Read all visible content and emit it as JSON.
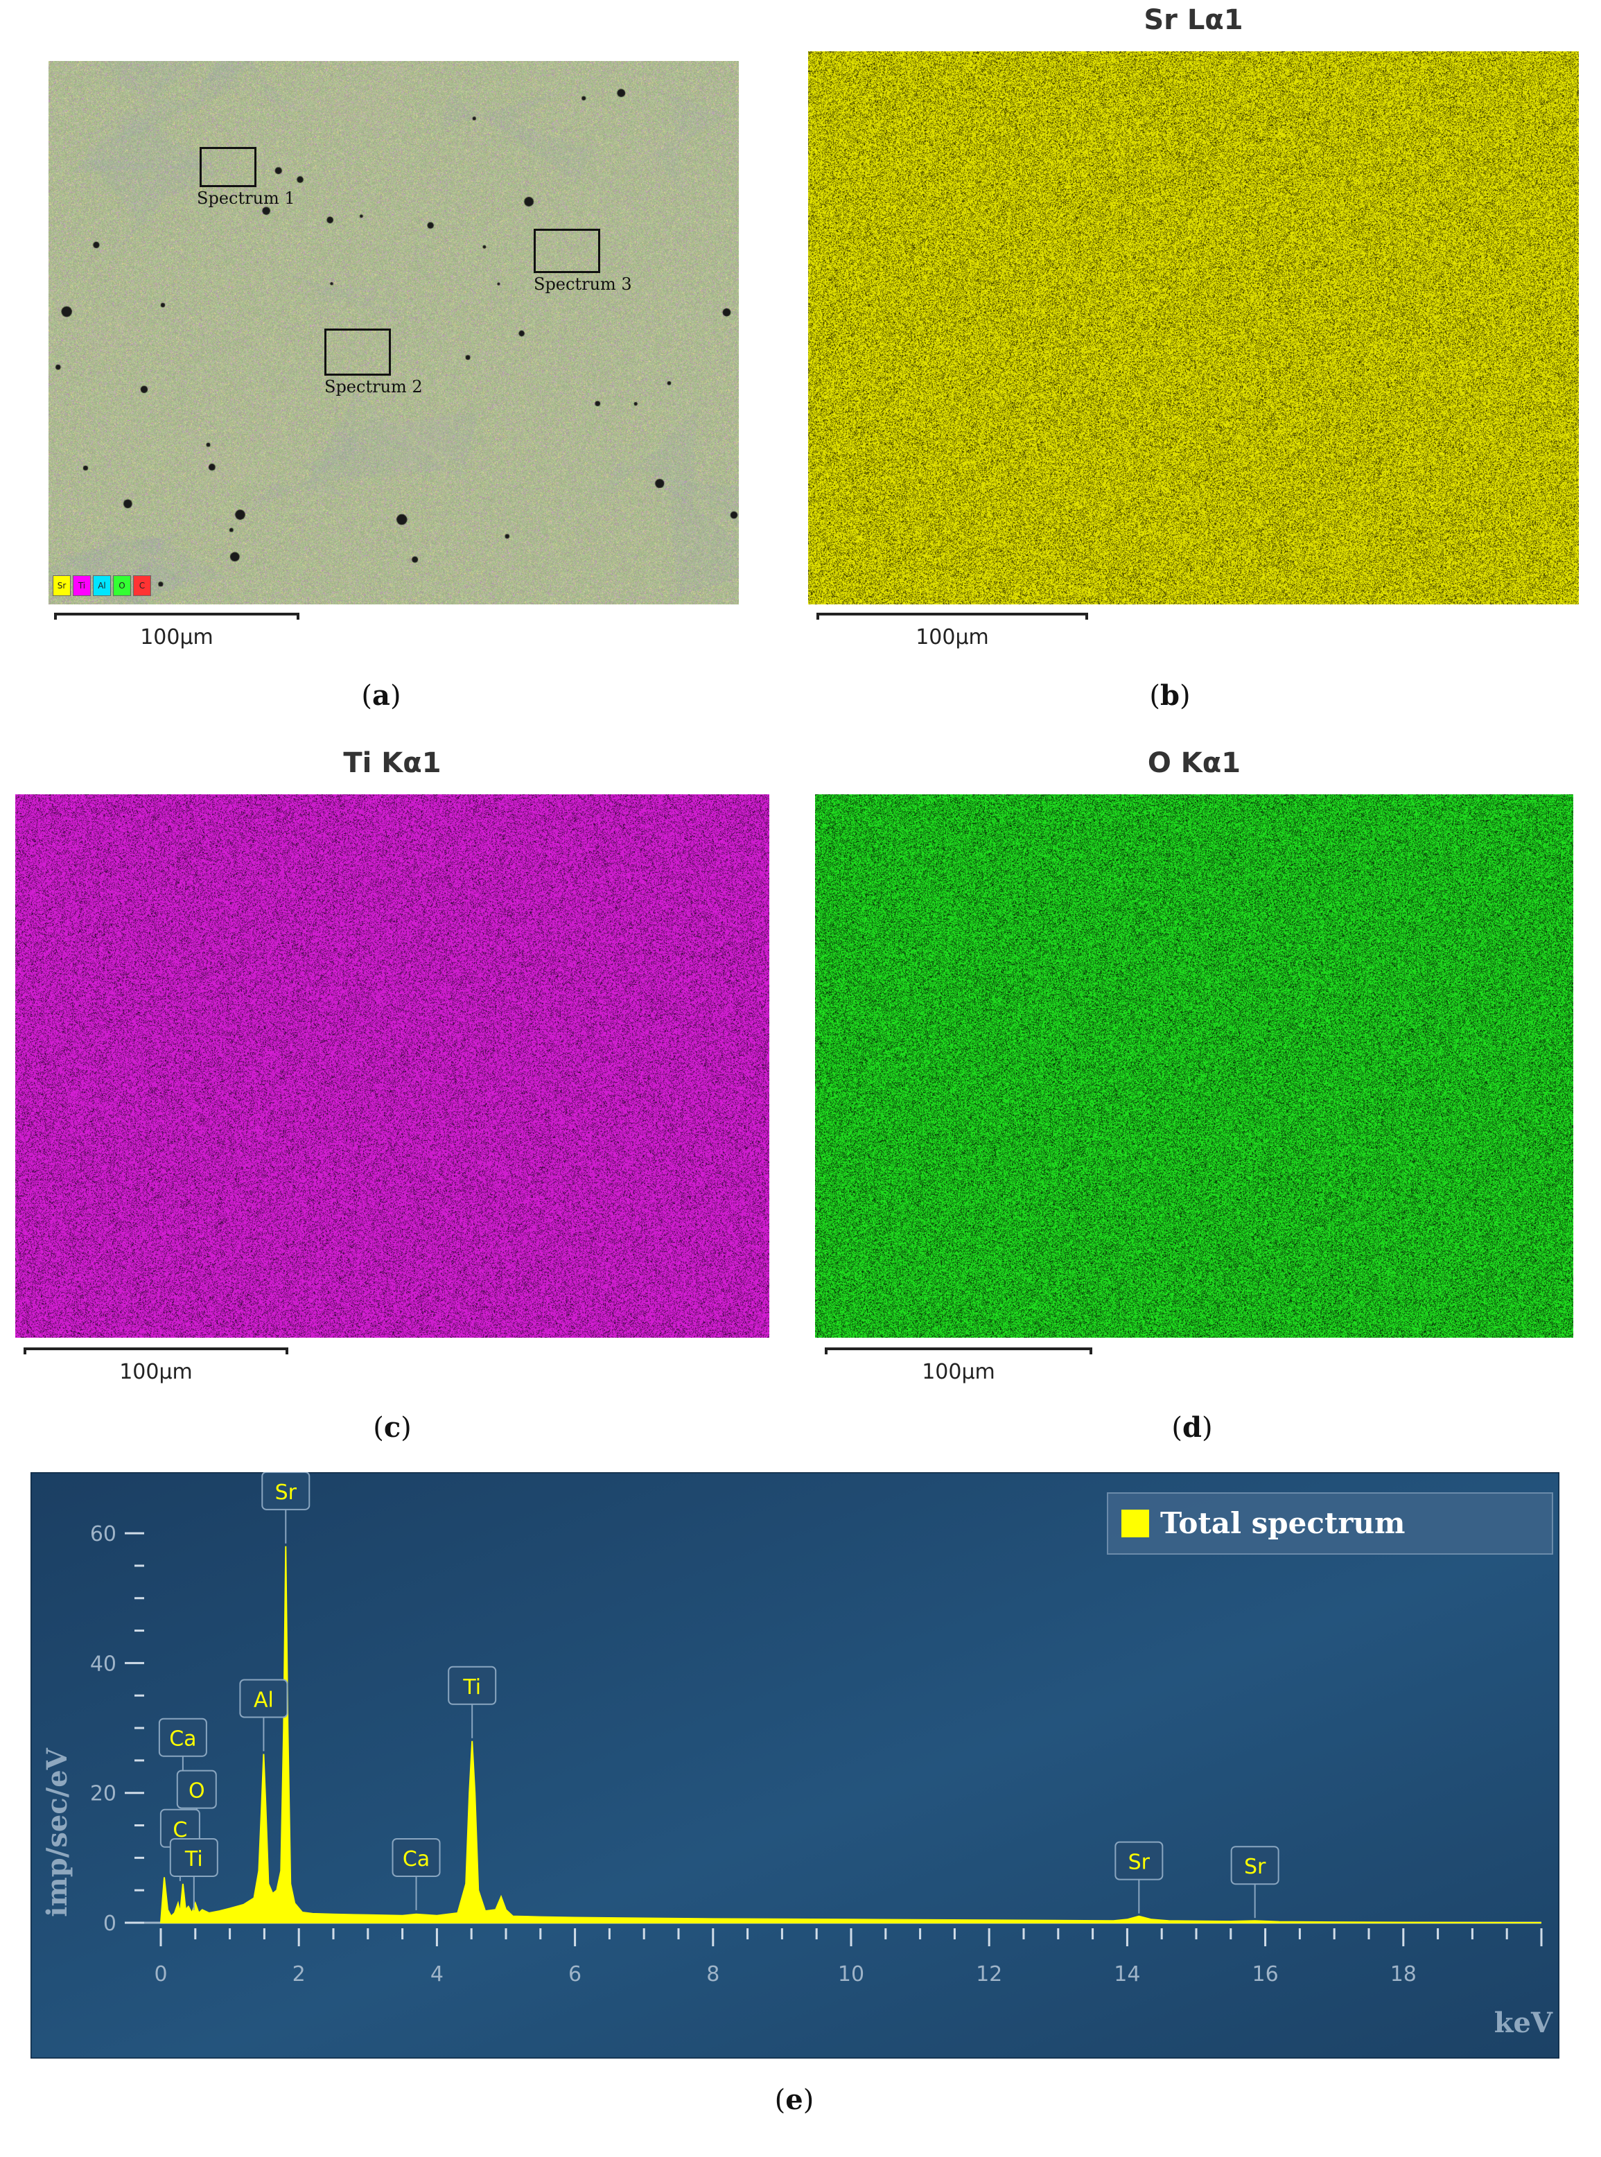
{
  "panels": {
    "a": {
      "caption": "a",
      "spectra": [
        "Spectrum 1",
        "Spectrum 2",
        "Spectrum 3"
      ],
      "legend": [
        {
          "label": "Sr",
          "color": "#ffff00"
        },
        {
          "label": "Ti",
          "color": "#ff00ff"
        },
        {
          "label": "Al",
          "color": "#00e5ff"
        },
        {
          "label": "O",
          "color": "#33ff33"
        },
        {
          "label": "C",
          "color": "#ff3333"
        }
      ],
      "scale_label": "100μm"
    },
    "b": {
      "caption": "b",
      "title": "Sr Lα1",
      "color": "#f0f000",
      "scale_label": "100μm"
    },
    "c": {
      "caption": "c",
      "title": "Ti Kα1",
      "color": "#e020e0",
      "scale_label": "100μm"
    },
    "d": {
      "caption": "d",
      "title": "O Kα1",
      "color": "#22ee22",
      "scale_label": "100μm"
    },
    "e": {
      "caption": "e"
    }
  },
  "chart_data": {
    "type": "line",
    "legend": "Total spectrum",
    "legend_color": "#ffff00",
    "xlabel": "keV",
    "ylabel": "imp/sec/eV",
    "xlim": [
      0,
      20
    ],
    "ylim": [
      0,
      63
    ],
    "x_ticks": [
      0,
      2,
      4,
      6,
      8,
      10,
      12,
      14,
      16,
      18
    ],
    "y_ticks": [
      0,
      20,
      40,
      60
    ],
    "background": "#1e4a70",
    "series": [
      {
        "name": "Total spectrum",
        "x": [
          0,
          0.05,
          0.1,
          0.15,
          0.2,
          0.25,
          0.28,
          0.32,
          0.36,
          0.4,
          0.45,
          0.5,
          0.55,
          0.6,
          0.7,
          0.85,
          1.0,
          1.2,
          1.35,
          1.42,
          1.46,
          1.49,
          1.52,
          1.56,
          1.62,
          1.68,
          1.74,
          1.78,
          1.81,
          1.84,
          1.88,
          1.94,
          2.05,
          2.2,
          2.5,
          3.0,
          3.5,
          3.7,
          4.0,
          4.3,
          4.42,
          4.47,
          4.51,
          4.55,
          4.6,
          4.7,
          4.85,
          4.93,
          5.0,
          5.1,
          5.5,
          6.0,
          8.0,
          10.0,
          12.0,
          13.8,
          14.0,
          14.17,
          14.35,
          14.6,
          15.5,
          15.85,
          16.2,
          17.0,
          18.0,
          20.0
        ],
        "y": [
          0,
          7,
          2,
          1,
          1.5,
          3,
          1.5,
          6,
          2,
          2.5,
          1.5,
          3,
          1.5,
          2,
          1.5,
          1.8,
          2.2,
          2.8,
          3.8,
          8,
          18,
          26,
          18,
          6,
          4.5,
          5,
          8,
          30,
          58,
          30,
          6,
          3,
          1.6,
          1.4,
          1.3,
          1.2,
          1.1,
          1.3,
          1.1,
          1.5,
          6,
          20,
          28,
          20,
          5,
          1.8,
          2,
          4,
          2,
          1,
          0.9,
          0.8,
          0.6,
          0.5,
          0.4,
          0.3,
          0.5,
          1.0,
          0.5,
          0.3,
          0.2,
          0.3,
          0.15,
          0.1,
          0.05,
          0
        ]
      }
    ],
    "peak_labels": [
      {
        "text": "Sr",
        "x": 1.81,
        "y": 58
      },
      {
        "text": "Al",
        "x": 1.49,
        "y": 26
      },
      {
        "text": "Ti",
        "x": 4.51,
        "y": 28
      },
      {
        "text": "Ca",
        "x": 0.32,
        "y": 20
      },
      {
        "text": "O",
        "x": 0.52,
        "y": 12
      },
      {
        "text": "C",
        "x": 0.28,
        "y": 6
      },
      {
        "text": "Ti",
        "x": 0.48,
        "y": 1.5
      },
      {
        "text": "Ca",
        "x": 3.7,
        "y": 1.5
      },
      {
        "text": "Sr",
        "x": 14.17,
        "y": 1.0
      },
      {
        "text": "Sr",
        "x": 15.85,
        "y": 0.3
      }
    ]
  }
}
